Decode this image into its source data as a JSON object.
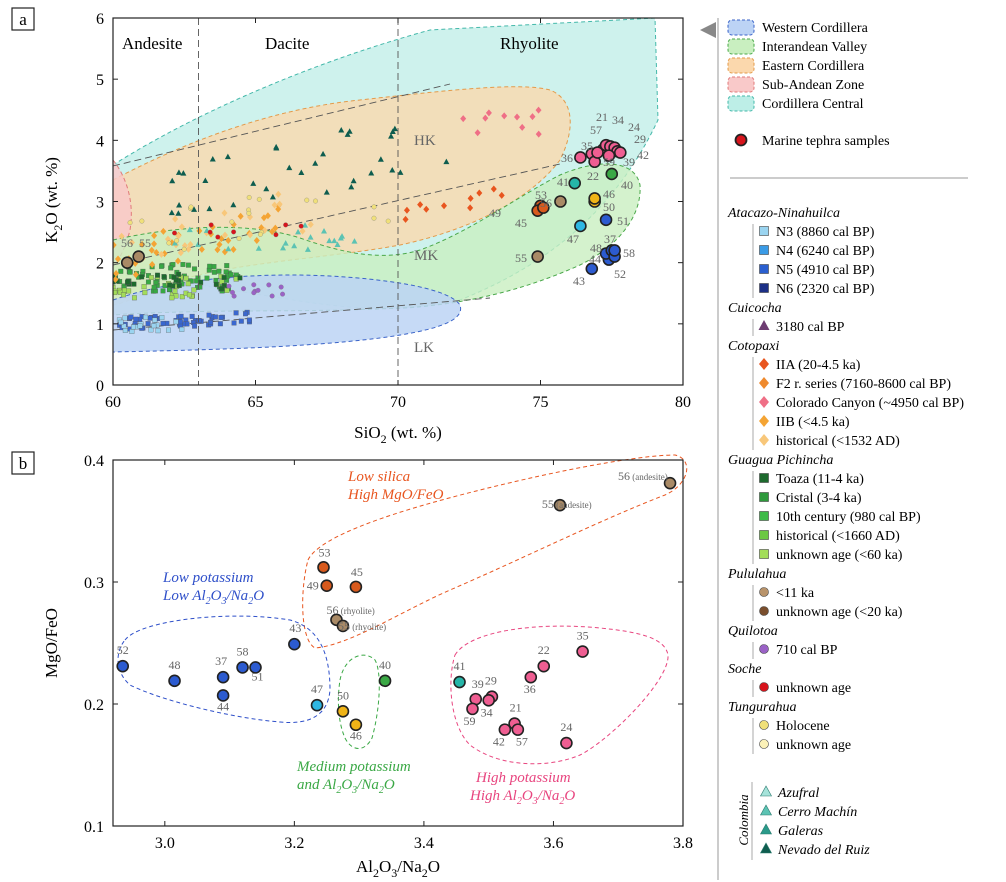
{
  "chart_data": [
    {
      "panel": "a",
      "type": "scatter",
      "xlabel": "SiO2 (wt. %)",
      "ylabel": "K2O (wt. %)",
      "xlim": [
        60,
        80
      ],
      "ylim": [
        0,
        6
      ],
      "xticks": [
        60,
        65,
        70,
        75,
        80
      ],
      "yticks": [
        0,
        1,
        2,
        3,
        4,
        5,
        6
      ],
      "region_labels": [
        "Andesite",
        "Dacite",
        "Rhyolite"
      ],
      "series_labels": [
        "HK",
        "MK",
        "LK"
      ],
      "legend": {
        "placement": "right",
        "regions": [
          {
            "label": "Western Cordillera",
            "fill": "#bcd3f5",
            "stroke": "#3a63c8"
          },
          {
            "label": "Interandean Valley",
            "fill": "#c9efc0",
            "stroke": "#4aa84a"
          },
          {
            "label": "Eastern Cordillera",
            "fill": "#fbd8ad",
            "stroke": "#e39a4a"
          },
          {
            "label": "Sub-Andean Zone",
            "fill": "#f9c9c9",
            "stroke": "#e07a7a"
          },
          {
            "label": "Cordillera Central",
            "fill": "#bdeee7",
            "stroke": "#44b8aa"
          }
        ],
        "marine_label": "Marine tephra samples"
      },
      "boundaries_x": [
        63,
        70
      ],
      "tephra": [
        {
          "id": "56",
          "x": 60.5,
          "y": 2.0,
          "c": "#a98a66"
        },
        {
          "id": "55",
          "x": 60.9,
          "y": 2.1,
          "c": "#a98a66"
        },
        {
          "id": "53",
          "x": 75.0,
          "y": 2.93,
          "c": "#d85a1d"
        },
        {
          "id": "49",
          "x": 74.9,
          "y": 2.85,
          "c": "#d85a1d"
        },
        {
          "id": "45",
          "x": 75.1,
          "y": 2.9,
          "c": "#d85a1d"
        },
        {
          "id": "56",
          "x": 75.7,
          "y": 3.0,
          "c": "#a98a66"
        },
        {
          "id": "55",
          "x": 74.9,
          "y": 2.1,
          "c": "#a98a66"
        },
        {
          "id": "41",
          "x": 76.2,
          "y": 3.3,
          "c": "#26b5a8"
        },
        {
          "id": "47",
          "x": 76.4,
          "y": 2.6,
          "c": "#2fb7e3"
        },
        {
          "id": "43",
          "x": 76.8,
          "y": 1.9,
          "c": "#2c5bd0"
        },
        {
          "id": "44",
          "x": 77.4,
          "y": 2.05,
          "c": "#2c5bd0"
        },
        {
          "id": "48",
          "x": 77.3,
          "y": 2.15,
          "c": "#2c5bd0"
        },
        {
          "id": "37",
          "x": 77.5,
          "y": 2.2,
          "c": "#2c5bd0"
        },
        {
          "id": "52",
          "x": 77.6,
          "y": 2.1,
          "c": "#2c5bd0"
        },
        {
          "id": "58",
          "x": 77.6,
          "y": 2.2,
          "c": "#2c5bd0"
        },
        {
          "id": "51",
          "x": 77.3,
          "y": 2.7,
          "c": "#2c5bd0"
        },
        {
          "id": "50",
          "x": 76.9,
          "y": 3.0,
          "c": "#f0b417"
        },
        {
          "id": "46",
          "x": 76.9,
          "y": 3.05,
          "c": "#f0b417"
        },
        {
          "id": "40",
          "x": 77.5,
          "y": 3.45,
          "c": "#3aa845"
        },
        {
          "id": "36",
          "x": 76.4,
          "y": 3.72,
          "c": "#ef5e92"
        },
        {
          "id": "35",
          "x": 76.8,
          "y": 3.78,
          "c": "#ef5e92"
        },
        {
          "id": "22",
          "x": 76.9,
          "y": 3.65,
          "c": "#ef5e92"
        },
        {
          "id": "57",
          "x": 77.2,
          "y": 3.85,
          "c": "#ef5e92"
        },
        {
          "id": "21",
          "x": 77.3,
          "y": 3.92,
          "c": "#ef5e92"
        },
        {
          "id": "34",
          "x": 77.45,
          "y": 3.9,
          "c": "#ef5e92"
        },
        {
          "id": "24",
          "x": 77.6,
          "y": 3.88,
          "c": "#ef5e92"
        },
        {
          "id": "29",
          "x": 77.7,
          "y": 3.82,
          "c": "#ef5e92"
        },
        {
          "id": "39",
          "x": 77.4,
          "y": 3.75,
          "c": "#ef5e92"
        },
        {
          "id": "42",
          "x": 77.8,
          "y": 3.8,
          "c": "#ef5e92"
        },
        {
          "id": "59",
          "x": 77.0,
          "y": 3.8,
          "c": "#ef5e92"
        }
      ]
    },
    {
      "panel": "b",
      "type": "scatter",
      "xlabel": "Al2O3/Na2O",
      "ylabel": "MgO/FeO",
      "xlim": [
        2.92,
        3.8
      ],
      "ylim": [
        0.1,
        0.4
      ],
      "xticks": [
        3.0,
        3.2,
        3.4,
        3.6,
        3.8
      ],
      "yticks": [
        0.1,
        0.2,
        0.3,
        0.4
      ],
      "group_labels": [
        {
          "line1": "Low silica",
          "line2": "High MgO/FeO",
          "color": "#e8551f"
        },
        {
          "line1": "Low potassium",
          "line2": "Low Al2O3/Na2O",
          "color": "#2e4fc9"
        },
        {
          "line1": "Medium potassium",
          "line2": "and Al2O3/Na2O",
          "color": "#3aa845"
        },
        {
          "line1": "High potassium",
          "line2": "High Al2O3/Na2O",
          "color": "#e8457f"
        }
      ],
      "points": [
        {
          "id": "56",
          "note": "(andesite)",
          "x": 3.78,
          "y": 0.381,
          "c": "#a98a66"
        },
        {
          "id": "55",
          "note": "(andesite)",
          "x": 3.61,
          "y": 0.363,
          "c": "#a98a66"
        },
        {
          "id": "53",
          "x": 3.245,
          "y": 0.312,
          "c": "#d85a1d"
        },
        {
          "id": "49",
          "x": 3.25,
          "y": 0.297,
          "c": "#d85a1d"
        },
        {
          "id": "45",
          "x": 3.295,
          "y": 0.296,
          "c": "#d85a1d"
        },
        {
          "id": "56",
          "note": "(rhyolite)",
          "x": 3.265,
          "y": 0.269,
          "c": "#a98a66"
        },
        {
          "id": "55",
          "note": "(rhyolite)",
          "x": 3.275,
          "y": 0.264,
          "c": "#a98a66"
        },
        {
          "id": "43",
          "x": 3.2,
          "y": 0.249,
          "c": "#2c5bd0"
        },
        {
          "id": "52",
          "x": 2.935,
          "y": 0.231,
          "c": "#2c5bd0"
        },
        {
          "id": "48",
          "x": 3.015,
          "y": 0.219,
          "c": "#2c5bd0"
        },
        {
          "id": "37",
          "x": 3.09,
          "y": 0.222,
          "c": "#2c5bd0"
        },
        {
          "id": "58",
          "x": 3.12,
          "y": 0.23,
          "c": "#2c5bd0"
        },
        {
          "id": "51",
          "x": 3.14,
          "y": 0.23,
          "c": "#2c5bd0"
        },
        {
          "id": "44",
          "x": 3.09,
          "y": 0.207,
          "c": "#2c5bd0"
        },
        {
          "id": "47",
          "x": 3.235,
          "y": 0.199,
          "c": "#2fb7e3"
        },
        {
          "id": "40",
          "x": 3.34,
          "y": 0.219,
          "c": "#3aa845"
        },
        {
          "id": "50",
          "x": 3.275,
          "y": 0.194,
          "c": "#f0b417"
        },
        {
          "id": "46",
          "x": 3.295,
          "y": 0.183,
          "c": "#f0b417"
        },
        {
          "id": "41",
          "x": 3.455,
          "y": 0.218,
          "c": "#26b5a8"
        },
        {
          "id": "39",
          "x": 3.48,
          "y": 0.204,
          "c": "#ef5e92"
        },
        {
          "id": "59",
          "x": 3.475,
          "y": 0.196,
          "c": "#ef5e92"
        },
        {
          "id": "29",
          "x": 3.505,
          "y": 0.206,
          "c": "#ef5e92"
        },
        {
          "id": "34",
          "x": 3.5,
          "y": 0.203,
          "c": "#ef5e92"
        },
        {
          "id": "21",
          "x": 3.54,
          "y": 0.184,
          "c": "#ef5e92"
        },
        {
          "id": "42",
          "x": 3.525,
          "y": 0.179,
          "c": "#ef5e92"
        },
        {
          "id": "57",
          "x": 3.545,
          "y": 0.179,
          "c": "#ef5e92"
        },
        {
          "id": "36",
          "x": 3.565,
          "y": 0.222,
          "c": "#ef5e92"
        },
        {
          "id": "22",
          "x": 3.585,
          "y": 0.231,
          "c": "#ef5e92"
        },
        {
          "id": "35",
          "x": 3.645,
          "y": 0.243,
          "c": "#ef5e92"
        },
        {
          "id": "24",
          "x": 3.62,
          "y": 0.168,
          "c": "#ef5e92"
        }
      ]
    }
  ],
  "legend_groups": [
    {
      "title": "Atacazo-Ninahuilca",
      "items": [
        {
          "label": "N3 (8860 cal BP)",
          "shape": "square",
          "c": "#9ad4f0"
        },
        {
          "label": "N4 (6240 cal BP)",
          "shape": "square",
          "c": "#3a9be6"
        },
        {
          "label": "N5 (4910 cal BP)",
          "shape": "square",
          "c": "#2a5fd0"
        },
        {
          "label": "N6 (2320 cal BP)",
          "shape": "square",
          "c": "#1c2f86"
        }
      ]
    },
    {
      "title": "Cuicocha",
      "items": [
        {
          "label": "3180 cal BP",
          "shape": "triangle",
          "c": "#6e3d72"
        }
      ]
    },
    {
      "title": "Cotopaxi",
      "items": [
        {
          "label": "IIA (20-4.5 ka)",
          "shape": "diamond",
          "c": "#e8551f"
        },
        {
          "label": "F2 r. series (7160-8600 cal BP)",
          "shape": "diamond",
          "c": "#ef8a2e"
        },
        {
          "label": "Colorado Canyon (~4950 cal BP)",
          "shape": "diamond",
          "c": "#ef6f86"
        },
        {
          "label": "IIB (<4.5 ka)",
          "shape": "diamond",
          "c": "#f4a434"
        },
        {
          "label": "historical (<1532 AD)",
          "shape": "diamond",
          "c": "#f8c77a"
        }
      ]
    },
    {
      "title": "Guagua Pichincha",
      "items": [
        {
          "label": "Toaza (11-4 ka)",
          "shape": "square",
          "c": "#1d6a2e"
        },
        {
          "label": "Cristal (3-4 ka)",
          "shape": "square",
          "c": "#2f9a3c"
        },
        {
          "label": "10th century (980 cal BP)",
          "shape": "square",
          "c": "#3dbb48"
        },
        {
          "label": "historical (<1660 AD)",
          "shape": "square",
          "c": "#6bc842"
        },
        {
          "label": "unknown age (<60 ka)",
          "shape": "square",
          "c": "#a3dd5a"
        }
      ]
    },
    {
      "title": "Pululahua",
      "items": [
        {
          "label": "<11 ka",
          "shape": "circle",
          "c": "#b8936a"
        },
        {
          "label": "unknown age (<20 ka)",
          "shape": "circle",
          "c": "#7a4e2d"
        }
      ]
    },
    {
      "title": "Quilotoa",
      "items": [
        {
          "label": "710 cal BP",
          "shape": "circle",
          "c": "#9a62c6"
        }
      ]
    },
    {
      "title": "Soche",
      "items": [
        {
          "label": "unknown age",
          "shape": "circle",
          "c": "#d7141c"
        }
      ]
    },
    {
      "title": "Tungurahua",
      "items": [
        {
          "label": "Holocene",
          "shape": "circle",
          "c": "#f0e07a"
        },
        {
          "label": "unknown age",
          "shape": "circle",
          "c": "#fbf1b8"
        }
      ]
    }
  ],
  "colombia": {
    "label": "Colombia",
    "items": [
      {
        "label": "Azufral",
        "c": "#a6e3da"
      },
      {
        "label": "Cerro Machín",
        "c": "#5cc3b3"
      },
      {
        "label": "Galeras",
        "c": "#2a9a8a"
      },
      {
        "label": "Nevado del Ruiz",
        "c": "#0e5d4f"
      }
    ]
  },
  "panel_labels": [
    "a",
    "b"
  ]
}
